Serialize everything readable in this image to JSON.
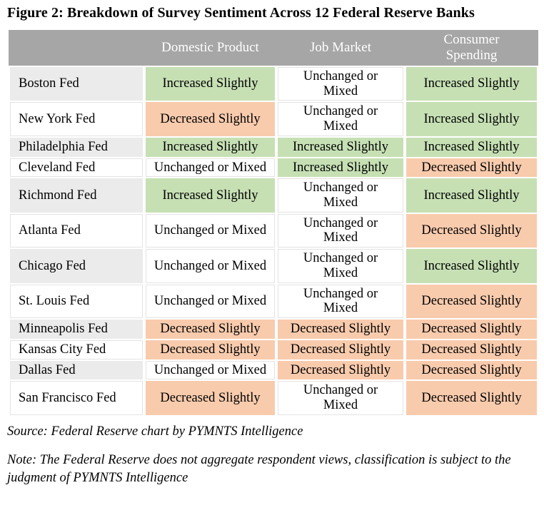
{
  "chart_data": {
    "type": "table",
    "title": "Figure 2: Breakdown of Survey Sentiment Across 12 Federal Reserve Banks",
    "columns": [
      "Domestic Product",
      "Job Market",
      "Consumer Spending"
    ],
    "rows": [
      {
        "bank": "Boston Fed",
        "values": [
          "Increased Slightly",
          "Unchanged or Mixed",
          "Increased Slightly"
        ]
      },
      {
        "bank": "New York Fed",
        "values": [
          "Decreased Slightly",
          "Unchanged or Mixed",
          "Increased Slightly"
        ]
      },
      {
        "bank": "Philadelphia Fed",
        "values": [
          "Increased Slightly",
          "Increased Slightly",
          "Increased Slightly"
        ]
      },
      {
        "bank": "Cleveland Fed",
        "values": [
          "Unchanged or Mixed",
          "Increased Slightly",
          "Decreased Slightly"
        ]
      },
      {
        "bank": "Richmond Fed",
        "values": [
          "Increased Slightly",
          "Unchanged or Mixed",
          "Increased Slightly"
        ]
      },
      {
        "bank": "Atlanta Fed",
        "values": [
          "Unchanged or Mixed",
          "Unchanged or Mixed",
          "Decreased Slightly"
        ]
      },
      {
        "bank": "Chicago Fed",
        "values": [
          "Unchanged or Mixed",
          "Unchanged or Mixed",
          "Increased Slightly"
        ]
      },
      {
        "bank": "St. Louis Fed",
        "values": [
          "Unchanged or Mixed",
          "Unchanged or Mixed",
          "Decreased Slightly"
        ]
      },
      {
        "bank": "Minneapolis Fed",
        "values": [
          "Decreased Slightly",
          "Decreased Slightly",
          "Decreased Slightly"
        ]
      },
      {
        "bank": "Kansas City Fed",
        "values": [
          "Decreased Slightly",
          "Decreased Slightly",
          "Decreased Slightly"
        ]
      },
      {
        "bank": "Dallas Fed",
        "values": [
          "Unchanged or Mixed",
          "Decreased Slightly",
          "Decreased Slightly"
        ]
      },
      {
        "bank": "San Francisco Fed",
        "values": [
          "Decreased Slightly",
          "Unchanged or Mixed",
          "Decreased Slightly"
        ]
      }
    ],
    "layout_hints": {
      "sentiment_legend": {
        "Increased Slightly": "green",
        "Unchanged or Mixed": "white",
        "Decreased Slightly": "orange"
      }
    }
  },
  "value_sentiment": {
    "Increased Slightly": "positive",
    "Decreased Slightly": "negative",
    "Unchanged or Mixed": "neutral"
  },
  "colors": {
    "positive": "#c6e0b4",
    "negative": "#f8cbad",
    "neutral": "#ffffff",
    "header_bg": "#a6a6a6",
    "header_text": "#ffffff",
    "label_alt_bg": "#ebebeb",
    "cell_outline": "#e3e3e3"
  },
  "source_line": "Source: Federal Reserve chart by PYMNTS Intelligence",
  "note_line": "Note: The Federal Reserve does not aggregate respondent views, classification is subject to the judgment of PYMNTS Intelligence"
}
